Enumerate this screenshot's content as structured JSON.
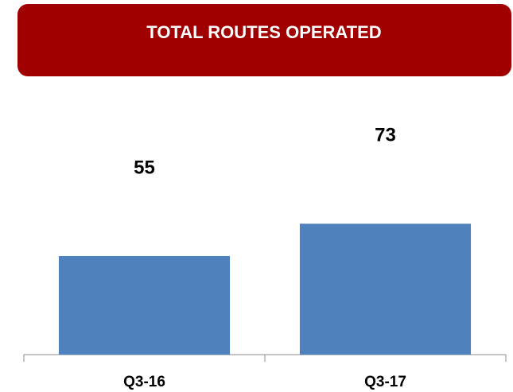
{
  "chart_data": {
    "type": "bar",
    "title": "TOTAL ROUTES OPERATED",
    "categories": [
      "Q3-16",
      "Q3-17"
    ],
    "values": [
      55,
      73
    ],
    "color": "#4f81bd"
  }
}
